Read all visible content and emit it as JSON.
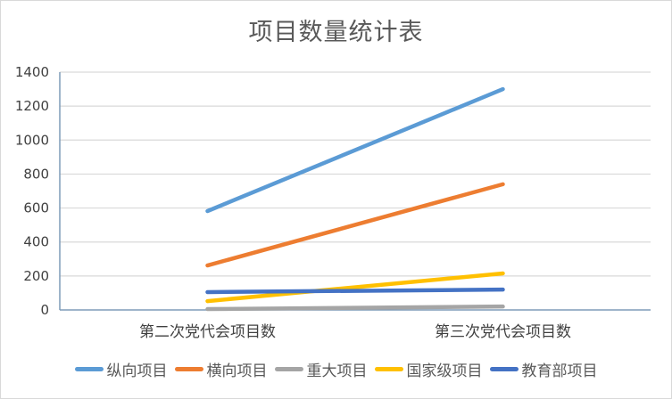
{
  "chart_data": {
    "type": "line",
    "title": "项目数量统计表",
    "xlabel": "",
    "ylabel": "",
    "categories": [
      "第二次党代会项目数",
      "第三次党代会项目数"
    ],
    "ylim": [
      0,
      1400
    ],
    "yticks": [
      0,
      200,
      400,
      600,
      800,
      1000,
      1200,
      1400
    ],
    "grid": true,
    "legend_position": "bottom",
    "series": [
      {
        "name": "纵向项目",
        "color": "#5B9BD5",
        "values": [
          582,
          1300
        ]
      },
      {
        "name": "横向项目",
        "color": "#ED7D31",
        "values": [
          262,
          740
        ]
      },
      {
        "name": "重大项目",
        "color": "#A5A5A5",
        "values": [
          5,
          20
        ]
      },
      {
        "name": "国家级项目",
        "color": "#FFC000",
        "values": [
          52,
          215
        ]
      },
      {
        "name": "教育部项目",
        "color": "#4472C4",
        "values": [
          105,
          120
        ]
      }
    ]
  }
}
